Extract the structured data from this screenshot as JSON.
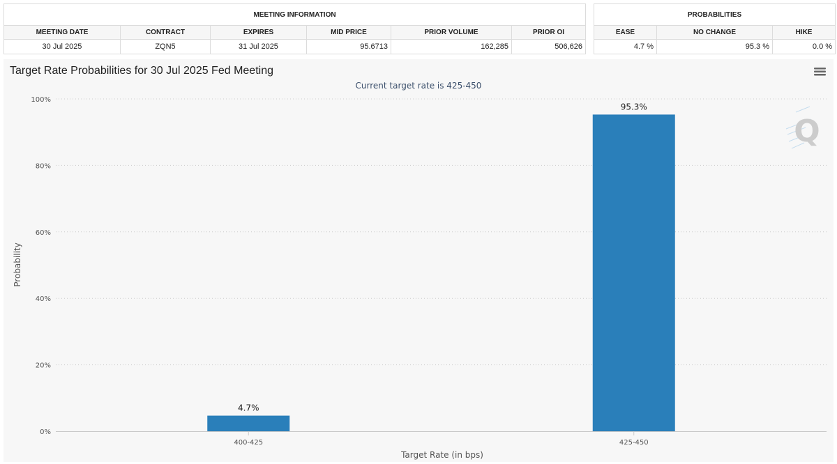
{
  "meeting_info": {
    "section_title": "MEETING INFORMATION",
    "headers": [
      "MEETING DATE",
      "CONTRACT",
      "EXPIRES",
      "MID PRICE",
      "PRIOR VOLUME",
      "PRIOR OI"
    ],
    "row": [
      "30 Jul 2025",
      "ZQN5",
      "31 Jul 2025",
      "95.6713",
      "162,285",
      "506,626"
    ]
  },
  "probabilities": {
    "section_title": "PROBABILITIES",
    "headers": [
      "EASE",
      "NO CHANGE",
      "HIKE"
    ],
    "row": [
      "4.7 %",
      "95.3 %",
      "0.0 %"
    ]
  },
  "menu_icon": "hamburger-menu-icon",
  "watermark_icon": "q-logo-icon",
  "colors": {
    "bar": "#2a7fba",
    "panel": "#f7f7f7",
    "grid": "#cccccc"
  },
  "chart_data": {
    "type": "bar",
    "title": "Target Rate Probabilities for 30 Jul 2025 Fed Meeting",
    "subtitle": "Current target rate is 425-450",
    "xlabel": "Target Rate (in bps)",
    "ylabel": "Probability",
    "categories": [
      "400-425",
      "425-450"
    ],
    "values": [
      4.7,
      95.3
    ],
    "data_labels": [
      "4.7%",
      "95.3%"
    ],
    "ylim": [
      0,
      100
    ],
    "yticks": [
      "0%",
      "20%",
      "40%",
      "60%",
      "80%",
      "100%"
    ],
    "grid": true,
    "legend": "none"
  }
}
